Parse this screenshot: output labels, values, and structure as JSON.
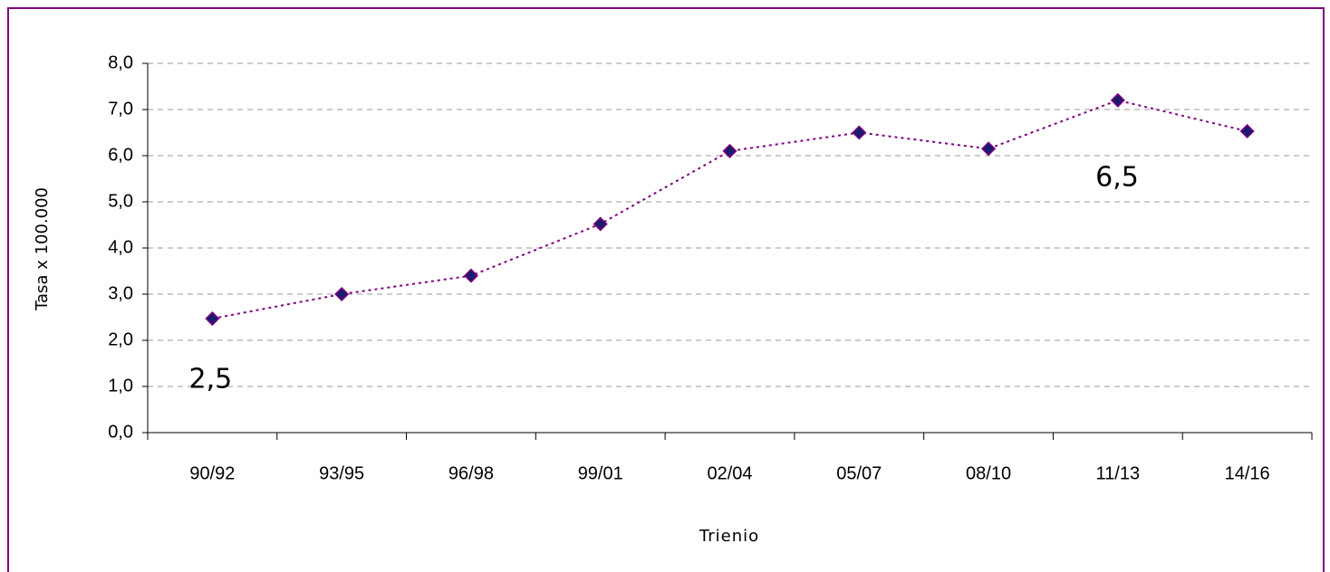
{
  "chart_data": {
    "type": "line",
    "x_label": "Trienio",
    "y_label": "Tasa x 100.000",
    "categories": [
      "90/92",
      "93/95",
      "96/98",
      "99/01",
      "02/04",
      "05/07",
      "08/10",
      "11/13",
      "14/16"
    ],
    "series": [
      {
        "name": "Tasa",
        "color": "#800080",
        "marker_color": "#1a1a6e",
        "values": [
          2.47,
          3.0,
          3.4,
          4.52,
          6.1,
          6.5,
          6.15,
          7.2,
          6.53
        ],
        "value_labels": [
          "2,5",
          null,
          null,
          null,
          null,
          null,
          null,
          null,
          "6,5"
        ]
      }
    ],
    "ylim": [
      0,
      8
    ],
    "yticks": [
      {
        "value": 0,
        "label": "0,0"
      },
      {
        "value": 1,
        "label": "1,0"
      },
      {
        "value": 2,
        "label": "2,0"
      },
      {
        "value": 3,
        "label": "3,0"
      },
      {
        "value": 4,
        "label": "4,0"
      },
      {
        "value": 5,
        "label": "5,0"
      },
      {
        "value": 6,
        "label": "6,0"
      },
      {
        "value": 7,
        "label": "7,0"
      },
      {
        "value": 8,
        "label": "8,0"
      }
    ],
    "grid": true
  }
}
